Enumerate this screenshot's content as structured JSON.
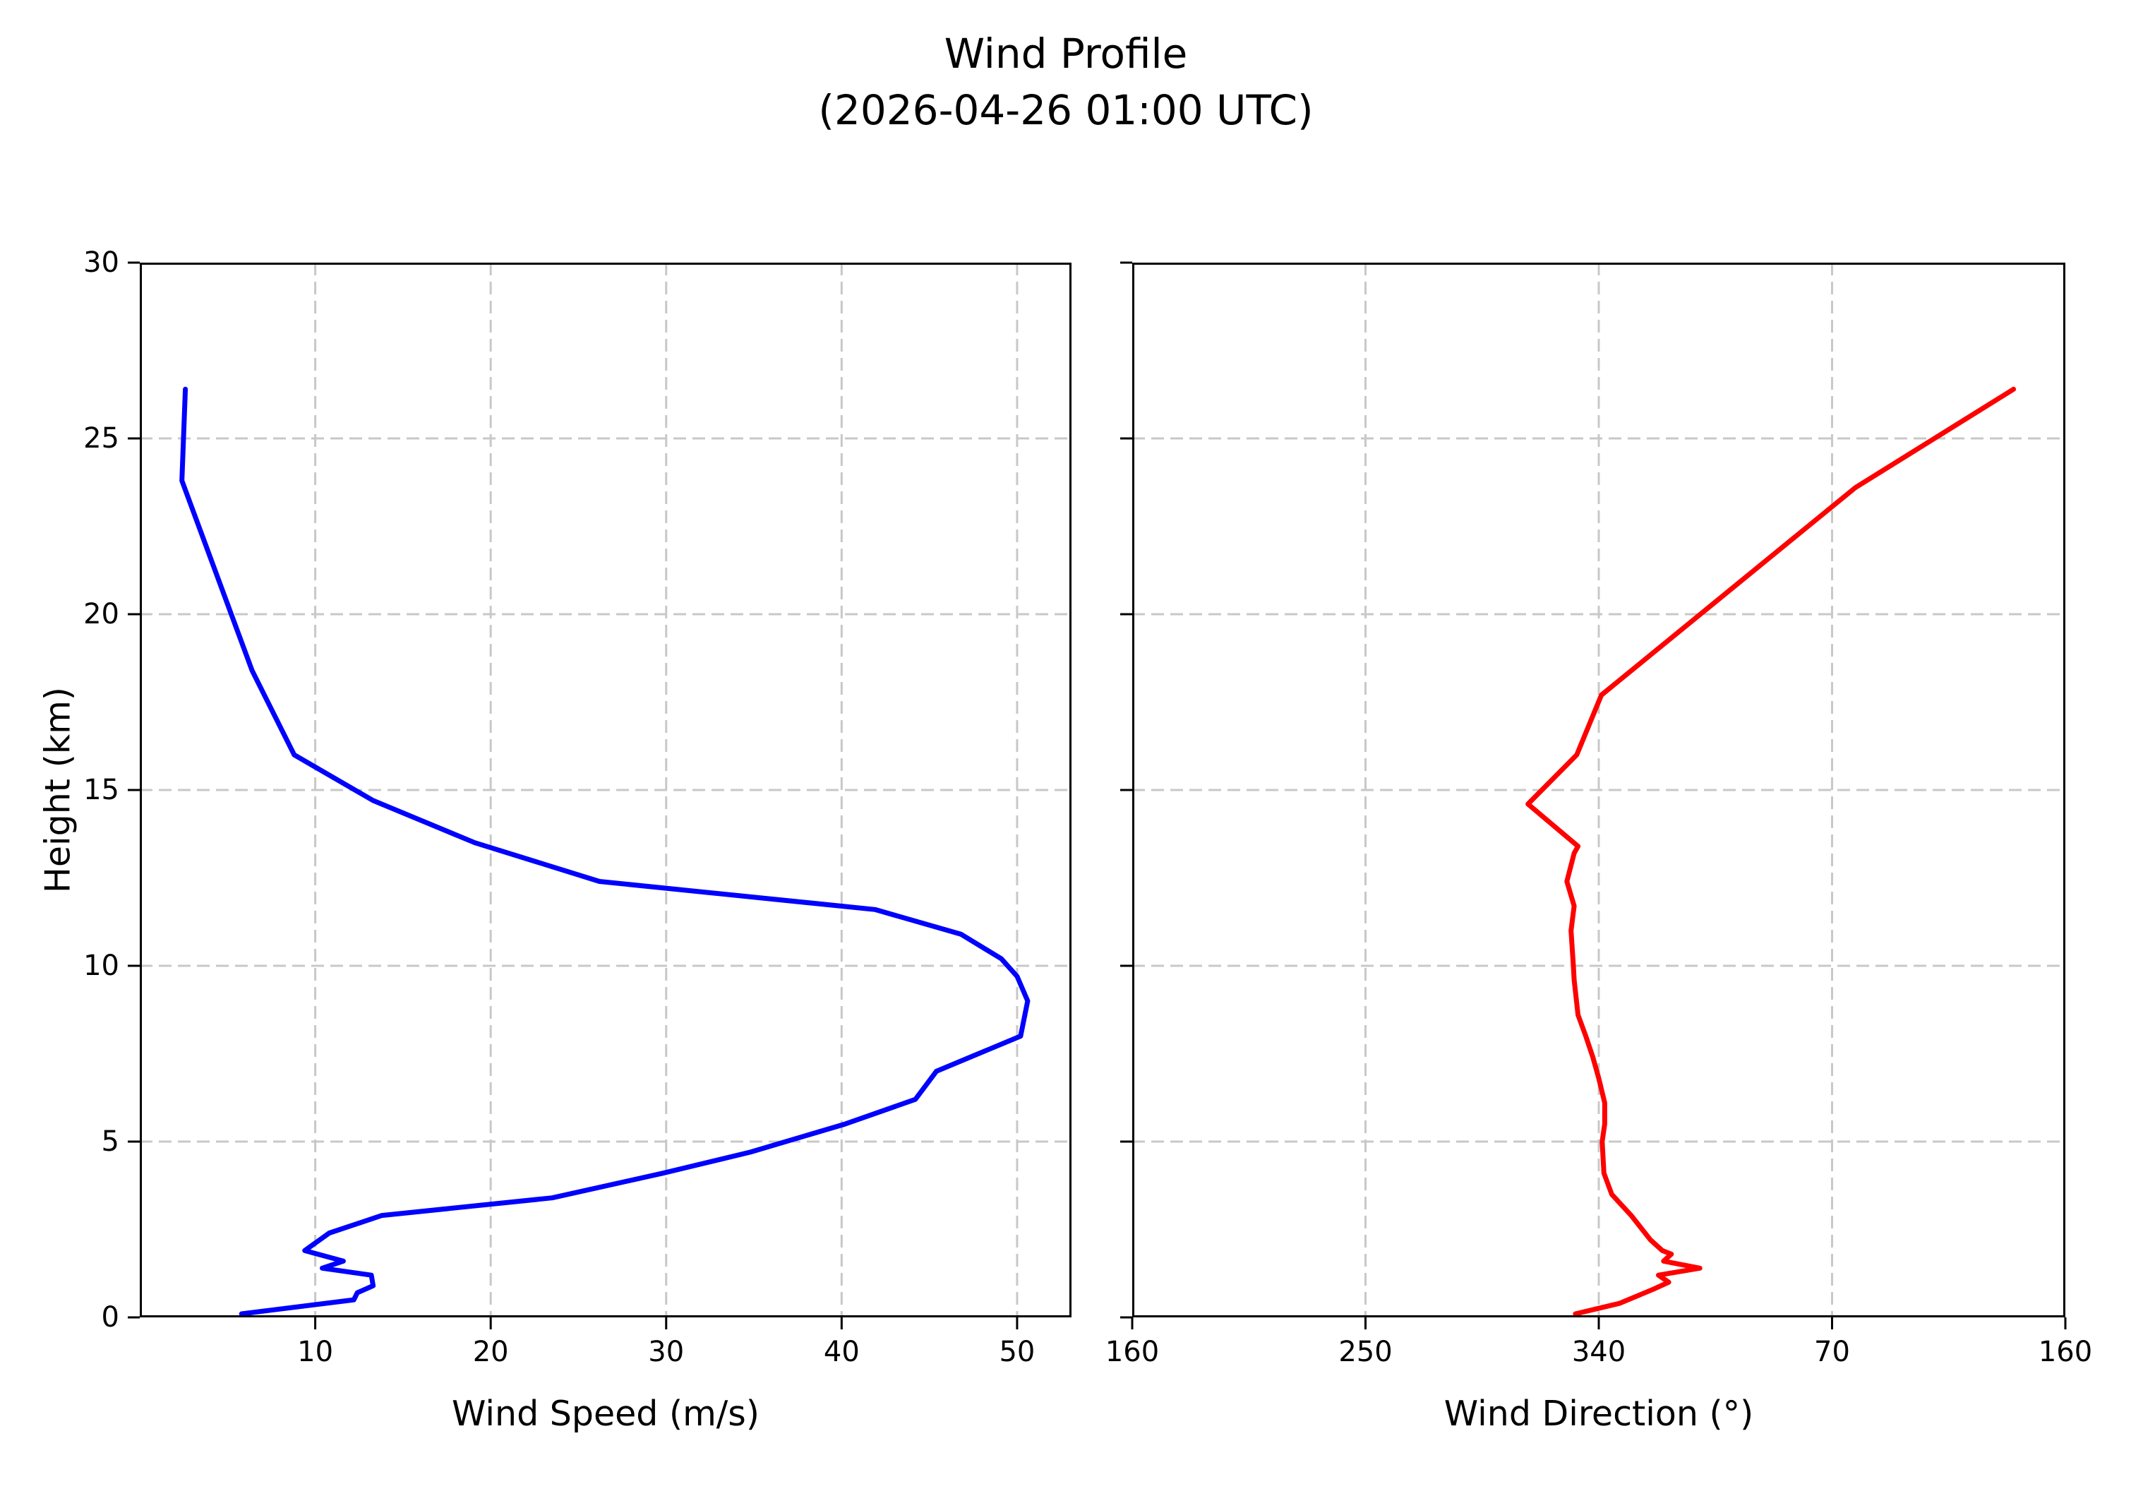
{
  "title": {
    "line1": "Wind Profile",
    "line2": "(2026-04-26 01:00 UTC)"
  },
  "colors": {
    "wind_speed_line": "#0000ff",
    "wind_direction_line": "#ff0000",
    "grid": "#c8c8c8",
    "spine": "#000000",
    "background": "#ffffff"
  },
  "chart_data": [
    {
      "type": "line",
      "panel": "wind-speed",
      "xlabel": "Wind Speed (m/s)",
      "ylabel": "Height (km)",
      "legend": "none",
      "grid": "dashed",
      "xlim": [
        0,
        53.1
      ],
      "ylim": [
        0,
        30
      ],
      "xticks": {
        "values": [
          10,
          20,
          30,
          40,
          50
        ],
        "labels": [
          "10",
          "20",
          "30",
          "40",
          "50"
        ]
      },
      "yticks": {
        "values": [
          0,
          5,
          10,
          15,
          20,
          25,
          30
        ],
        "labels": [
          "0",
          "5",
          "10",
          "15",
          "20",
          "25",
          "30"
        ]
      },
      "heights": [
        0.1,
        0.5,
        0.7,
        0.9,
        1.2,
        1.4,
        1.6,
        1.9,
        2.4,
        2.9,
        3.4,
        4.1,
        4.7,
        5.5,
        6.2,
        7.0,
        8.0,
        9.0,
        9.7,
        10.2,
        10.9,
        11.6,
        12.4,
        13.5,
        14.7,
        16.0,
        18.4,
        23.8,
        26.4
      ],
      "speeds": [
        5.8,
        12.2,
        12.4,
        13.3,
        13.2,
        10.4,
        11.6,
        9.4,
        10.8,
        13.8,
        23.5,
        29.8,
        34.8,
        40.2,
        44.2,
        45.4,
        50.2,
        50.6,
        50.0,
        49.1,
        46.8,
        41.9,
        26.2,
        19.1,
        13.3,
        8.8,
        6.4,
        2.4,
        2.6
      ]
    },
    {
      "type": "line",
      "panel": "wind-direction",
      "xlabel": "Wind Direction (°)",
      "ylabel": "Height (km)",
      "legend": "none",
      "grid": "dashed",
      "xlim": [
        160,
        520
      ],
      "ylim": [
        0,
        30
      ],
      "xticks": {
        "values": [
          160,
          250,
          340,
          430,
          520
        ],
        "labels": [
          "160",
          "250",
          "340",
          "70",
          "160"
        ]
      },
      "yticks": {
        "values": [
          0,
          5,
          10,
          15,
          20,
          25,
          30
        ],
        "labels": []
      },
      "heights": [
        0.1,
        0.4,
        0.8,
        1.0,
        1.2,
        1.4,
        1.6,
        1.8,
        1.9,
        2.2,
        2.9,
        3.5,
        4.1,
        5.0,
        5.5,
        6.1,
        6.8,
        7.4,
        8.0,
        8.6,
        9.6,
        10.0,
        11.0,
        11.7,
        12.4,
        13.2,
        13.4,
        14.6,
        16.0,
        17.7,
        23.6,
        26.4
      ],
      "directions": [
        331,
        348,
        361,
        367,
        363,
        379,
        365,
        368,
        364.5,
        360,
        352.5,
        345,
        342,
        341.3,
        342.3,
        342.3,
        340,
        337.7,
        335,
        332,
        330.5,
        330.2,
        329.3,
        330.5,
        327.7,
        330.5,
        332,
        312.7,
        331.5,
        341,
        439,
        500
      ]
    }
  ]
}
